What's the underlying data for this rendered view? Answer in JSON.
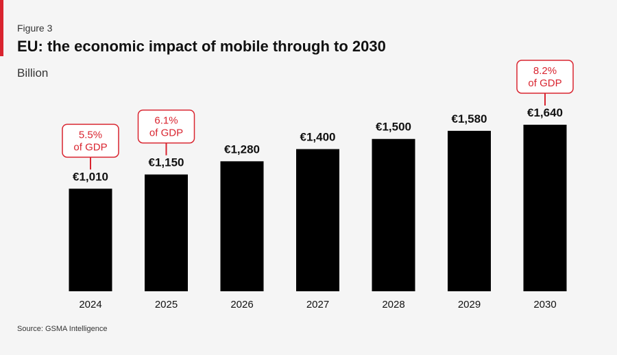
{
  "figure_label": "Figure 3",
  "source": "Source: GSMA Intelligence",
  "colors": {
    "bar": "#000000",
    "accent": "#d9242f",
    "background": "#f5f5f5"
  },
  "chart_data": {
    "type": "bar",
    "title": "EU: the economic impact of mobile through to 2030",
    "unit_label": "Billion",
    "xlabel": "",
    "ylabel": "",
    "ylim": [
      0,
      1640
    ],
    "grid": false,
    "legend": "none",
    "categories": [
      "2024",
      "2025",
      "2026",
      "2027",
      "2028",
      "2029",
      "2030"
    ],
    "values": [
      1010,
      1150,
      1280,
      1400,
      1500,
      1580,
      1640
    ],
    "data_labels": [
      "€1,010",
      "€1,150",
      "€1,280",
      "€1,400",
      "€1,500",
      "€1,580",
      "€1,640"
    ],
    "annotations": [
      {
        "category": "2024",
        "lines": [
          "5.5%",
          "of GDP"
        ]
      },
      {
        "category": "2025",
        "lines": [
          "6.1%",
          "of GDP"
        ]
      },
      {
        "category": "2030",
        "lines": [
          "8.2%",
          "of GDP"
        ]
      }
    ]
  }
}
